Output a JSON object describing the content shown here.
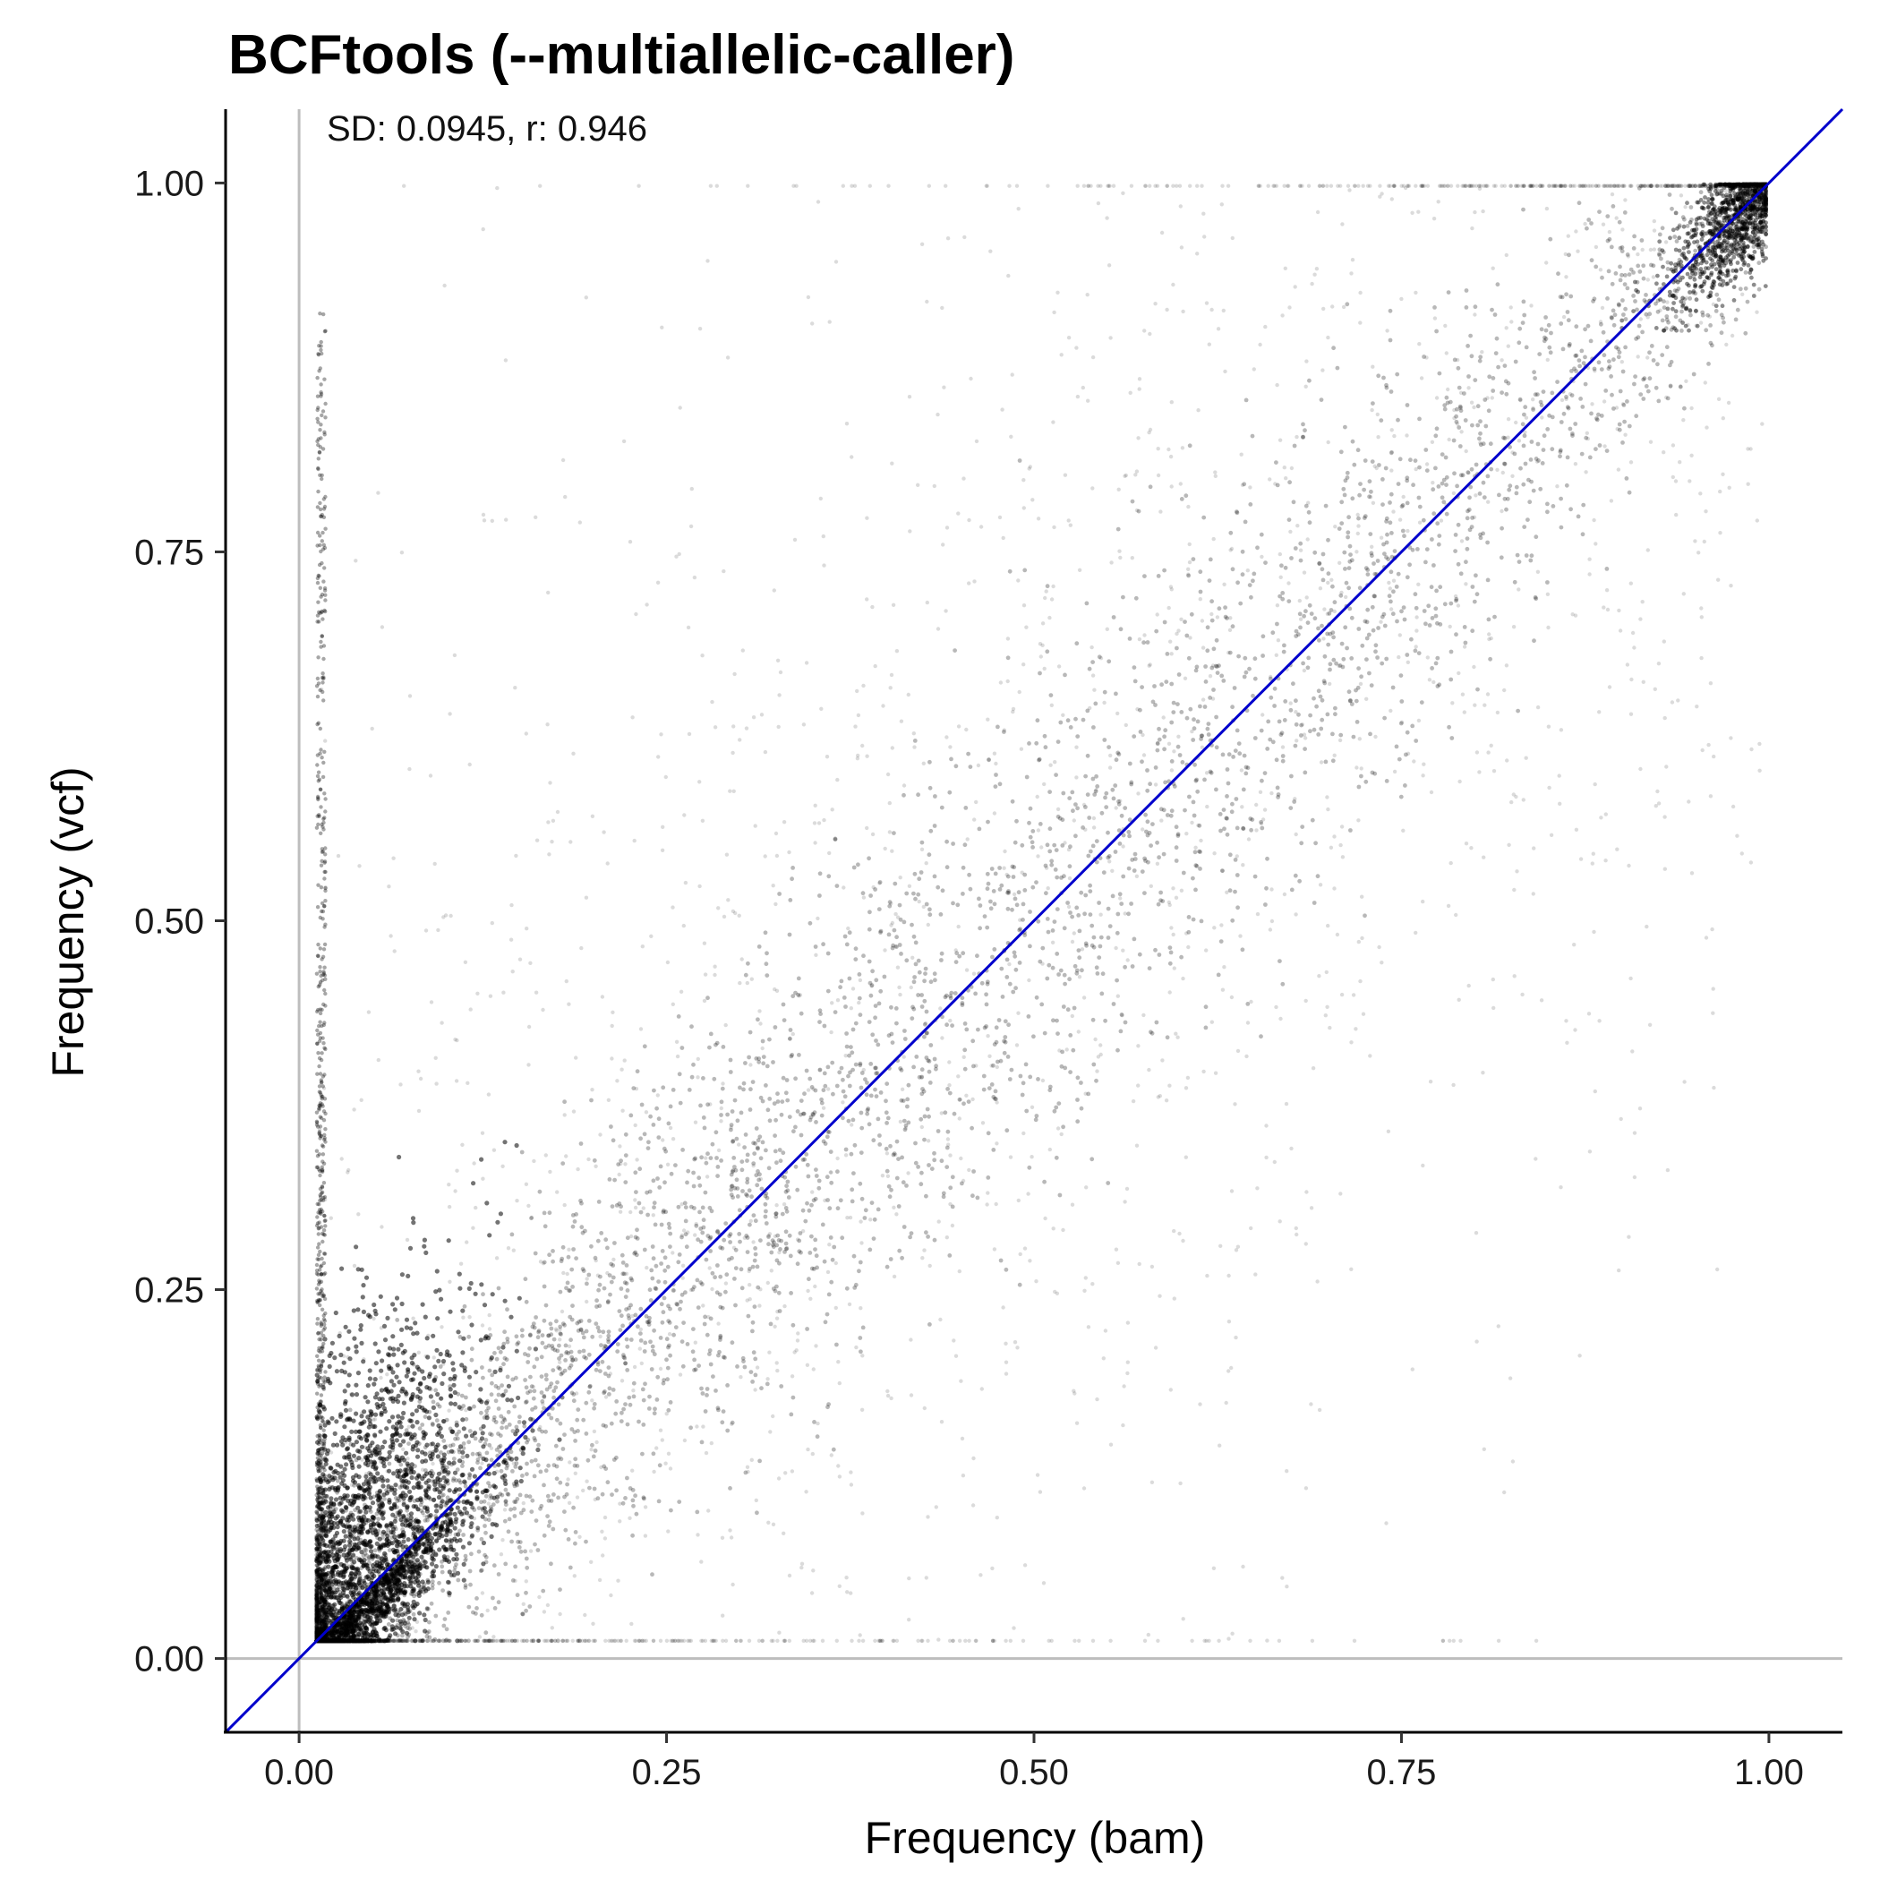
{
  "chart_data": {
    "type": "scatter",
    "title": "BCFtools (--multiallelic-caller)",
    "xlabel": "Frequency (bam)",
    "ylabel": "Frequency (vcf)",
    "xlim": [
      -0.05,
      1.05
    ],
    "ylim": [
      -0.05,
      1.05
    ],
    "x_ticks": [
      "0.00",
      "0.25",
      "0.50",
      "0.75",
      "1.00"
    ],
    "y_ticks": [
      "0.00",
      "0.25",
      "0.50",
      "0.75",
      "1.00"
    ],
    "x_tick_values": [
      0,
      0.25,
      0.5,
      0.75,
      1.0
    ],
    "y_tick_values": [
      0,
      0.25,
      0.5,
      0.75,
      1.0
    ],
    "annotation": "SD: 0.0945, r: 0.946",
    "reference_lines": {
      "identity": {
        "slope": 1,
        "intercept": 0,
        "color": "#0000cc"
      },
      "x_zero": {
        "x": 0,
        "color": "#bdbdbd"
      },
      "y_zero": {
        "y": 0,
        "color": "#bdbdbd"
      }
    },
    "points": {
      "color": "#000000",
      "alpha": 0.08,
      "x_range": [
        0.01,
        1.0
      ],
      "y_range": [
        0.01,
        1.0
      ],
      "approx_correlation": 0.946,
      "approx_sd_of_difference": 0.0945
    },
    "grid": false,
    "legend": "none"
  }
}
